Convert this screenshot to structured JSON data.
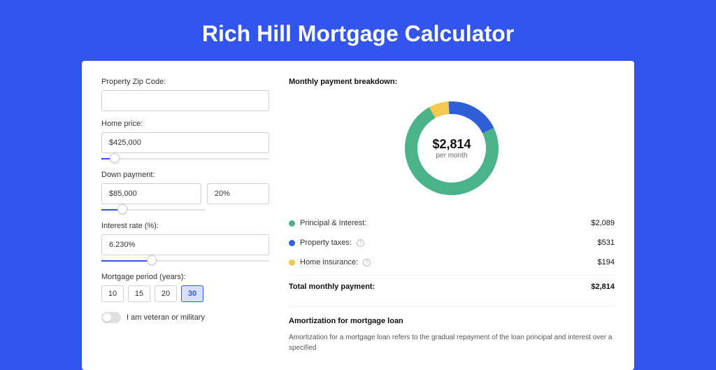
{
  "page": {
    "title": "Rich Hill Mortgage Calculator",
    "background_color": "#3355ee",
    "card_background": "#ffffff"
  },
  "form": {
    "zip": {
      "label": "Property Zip Code:",
      "value": ""
    },
    "home_price": {
      "label": "Home price:",
      "value": "$425,000",
      "slider_pct": 8
    },
    "down_payment": {
      "label": "Down payment:",
      "amount": "$85,000",
      "percent": "20%",
      "slider_pct": 20
    },
    "interest_rate": {
      "label": "Interest rate (%):",
      "value": "6.230%",
      "slider_pct": 30
    },
    "mortgage_period": {
      "label": "Mortgage period (years):",
      "options": [
        "10",
        "15",
        "20",
        "30"
      ],
      "selected": "30"
    },
    "veteran": {
      "label": "I am veteran or military",
      "checked": false
    }
  },
  "breakdown": {
    "title": "Monthly payment breakdown:",
    "donut": {
      "amount": "$2,814",
      "period_label": "per month",
      "slices": [
        {
          "key": "principal_interest",
          "value": 2089,
          "color": "#4bb38a"
        },
        {
          "key": "property_taxes",
          "value": 531,
          "color": "#2e5fd9"
        },
        {
          "key": "home_insurance",
          "value": 194,
          "color": "#f2c94c"
        }
      ],
      "track_color": "#eeeeee",
      "stroke_width": 18
    },
    "legend": [
      {
        "label": "Principal & Interest:",
        "value": "$2,089",
        "color": "#4bb38a",
        "info": false
      },
      {
        "label": "Property taxes:",
        "value": "$531",
        "color": "#2e5fd9",
        "info": true
      },
      {
        "label": "Home insurance:",
        "value": "$194",
        "color": "#f2c94c",
        "info": true
      }
    ],
    "total": {
      "label": "Total monthly payment:",
      "value": "$2,814"
    }
  },
  "amortization": {
    "title": "Amortization for mortgage loan",
    "text": "Amortization for a mortgage loan refers to the gradual repayment of the loan principal and interest over a specified"
  }
}
